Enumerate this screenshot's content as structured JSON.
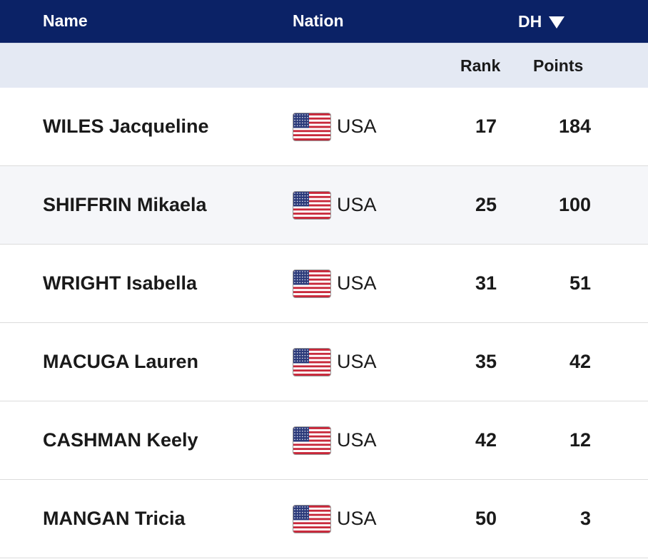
{
  "header": {
    "name_label": "Name",
    "nation_label": "Nation",
    "event_label": "DH"
  },
  "subheader": {
    "rank_label": "Rank",
    "points_label": "Points"
  },
  "colors": {
    "header_bg": "#0b2266",
    "subheader_bg": "#e4e9f3"
  },
  "rows": [
    {
      "name": "WILES Jacqueline",
      "nation": "USA",
      "flag": "usa-flag-icon",
      "rank": "17",
      "points": "184"
    },
    {
      "name": "SHIFFRIN Mikaela",
      "nation": "USA",
      "flag": "usa-flag-icon",
      "rank": "25",
      "points": "100"
    },
    {
      "name": "WRIGHT Isabella",
      "nation": "USA",
      "flag": "usa-flag-icon",
      "rank": "31",
      "points": "51"
    },
    {
      "name": "MACUGA Lauren",
      "nation": "USA",
      "flag": "usa-flag-icon",
      "rank": "35",
      "points": "42"
    },
    {
      "name": "CASHMAN Keely",
      "nation": "USA",
      "flag": "usa-flag-icon",
      "rank": "42",
      "points": "12"
    },
    {
      "name": "MANGAN Tricia",
      "nation": "USA",
      "flag": "usa-flag-icon",
      "rank": "50",
      "points": "3"
    }
  ]
}
